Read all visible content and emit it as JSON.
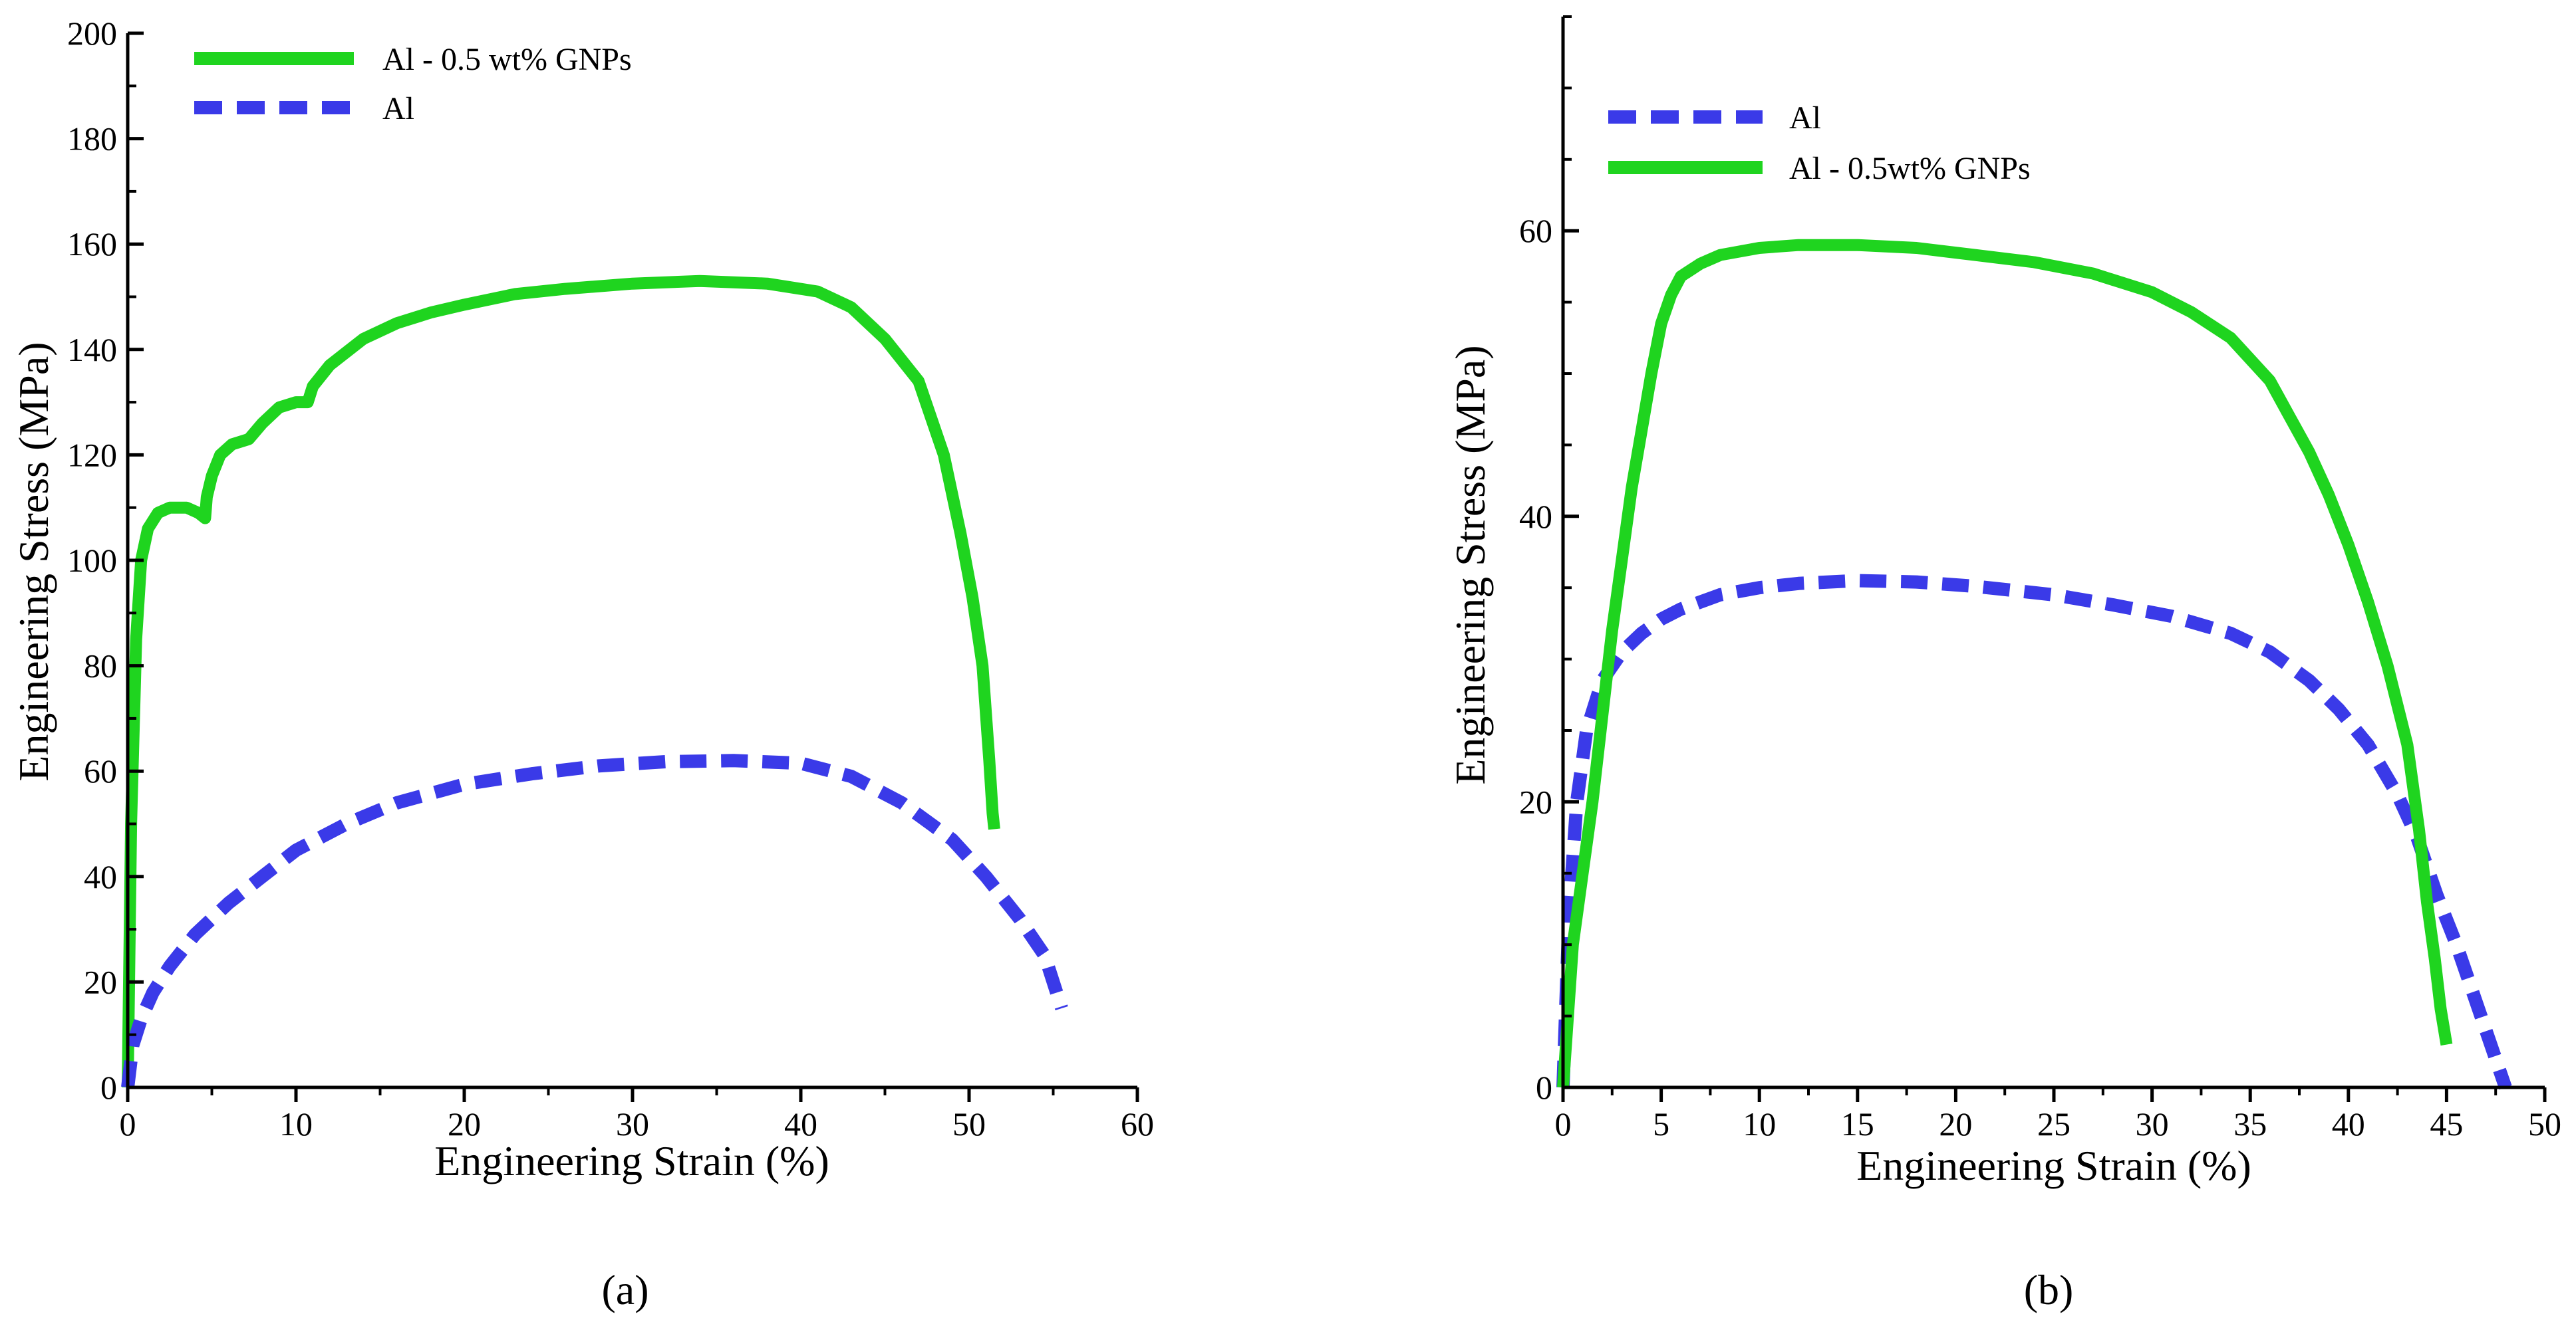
{
  "figure": {
    "panel_labels": [
      "(a)",
      "(b)"
    ]
  },
  "colors": {
    "gnp": "#1fd41f",
    "al": "#3a3ae8",
    "axis": "#000000",
    "background": "#ffffff"
  },
  "chart_data": [
    {
      "type": "line",
      "panel": "(a)",
      "title": "",
      "xlabel": "Engineering Strain (%)",
      "ylabel": "Engineering Stress (MPa)",
      "xlim": [
        0,
        60
      ],
      "ylim": [
        0,
        200
      ],
      "xticks": [
        0,
        10,
        20,
        30,
        40,
        50,
        60
      ],
      "yticks": [
        0,
        20,
        40,
        60,
        80,
        100,
        120,
        140,
        160,
        180,
        200
      ],
      "grid": false,
      "legend_position": "top-left",
      "series": [
        {
          "name": "Al - 0.5 wt% GNPs",
          "style": "solid",
          "color": "#1fd41f",
          "x": [
            0,
            0.2,
            0.5,
            0.8,
            1.2,
            1.8,
            2.5,
            3.5,
            4.2,
            4.6,
            4.7,
            5.0,
            5.5,
            6.2,
            7.2,
            8.0,
            9.0,
            10.0,
            10.7,
            11.0,
            12.0,
            14.0,
            16.0,
            18.0,
            20.0,
            23.0,
            26.0,
            30.0,
            34.0,
            38.0,
            41.0,
            43.0,
            45.0,
            47.0,
            48.5,
            49.5,
            50.2,
            50.8,
            51.2,
            51.4,
            51.5
          ],
          "y": [
            0,
            50,
            85,
            100,
            106,
            109,
            110,
            110,
            109,
            108,
            112,
            116,
            120,
            122,
            123,
            126,
            129,
            130,
            130,
            133,
            137,
            142,
            145,
            147,
            148.5,
            150.5,
            151.5,
            152.5,
            153,
            152.5,
            151,
            148,
            142,
            134,
            120,
            105,
            93,
            80,
            62,
            52,
            49
          ]
        },
        {
          "name": "Al",
          "style": "dashed",
          "color": "#3a3ae8",
          "x": [
            0,
            0.3,
            0.8,
            1.5,
            2.5,
            4,
            6,
            8,
            10,
            13,
            16,
            20,
            24,
            28,
            32,
            36,
            40,
            43,
            46,
            49,
            51,
            53,
            54.5,
            55.5
          ],
          "y": [
            0,
            8,
            13,
            18,
            23,
            29,
            35,
            40,
            45,
            50,
            54,
            57.5,
            59.5,
            61,
            61.8,
            62,
            61.5,
            59,
            54,
            47,
            40,
            32,
            25,
            15
          ]
        }
      ]
    },
    {
      "type": "line",
      "panel": "(b)",
      "title": "",
      "xlabel": "Engineering Strain (%)",
      "ylabel": "Engineering Stress (MPa)",
      "xlim": [
        0,
        50
      ],
      "ylim": [
        0,
        75
      ],
      "xticks": [
        0,
        5,
        10,
        15,
        20,
        25,
        30,
        35,
        40,
        45,
        50
      ],
      "yticks": [
        0,
        20,
        40,
        60
      ],
      "grid": false,
      "legend_position": "top-left",
      "series": [
        {
          "name": "Al",
          "style": "dashed",
          "color": "#3a3ae8",
          "x": [
            0,
            0.3,
            0.7,
            1.2,
            2,
            3,
            4,
            5,
            6,
            8,
            10,
            12,
            15,
            18,
            21,
            25,
            28,
            31,
            34,
            36,
            38,
            39.5,
            41,
            42.5,
            43.5,
            44.5,
            45.5,
            46.5,
            47.5,
            48
          ],
          "y": [
            0,
            12,
            20,
            25,
            28.5,
            30.5,
            31.8,
            32.8,
            33.5,
            34.5,
            35,
            35.3,
            35.5,
            35.4,
            35.1,
            34.5,
            33.8,
            33,
            31.8,
            30.5,
            28.5,
            26.5,
            24,
            20.5,
            17.5,
            13.5,
            10,
            6,
            2,
            0
          ]
        },
        {
          "name": "Al - 0.5wt% GNPs",
          "style": "solid",
          "color": "#1fd41f",
          "x": [
            0,
            0.5,
            1.0,
            1.5,
            2,
            2.5,
            3,
            3.5,
            4,
            4.5,
            5,
            5.5,
            6,
            7,
            8,
            10,
            12,
            15,
            18,
            21,
            24,
            27,
            30,
            32,
            34,
            36,
            37,
            38,
            39,
            40,
            41,
            42,
            43,
            43.6,
            44.0,
            44.4,
            44.7,
            45.0
          ],
          "y": [
            0,
            10,
            15,
            20,
            26,
            32,
            37,
            42,
            46,
            50,
            53.5,
            55.5,
            56.8,
            57.7,
            58.3,
            58.8,
            59,
            59,
            58.8,
            58.3,
            57.8,
            57,
            55.7,
            54.3,
            52.5,
            49.5,
            47,
            44.5,
            41.5,
            38,
            34,
            29.5,
            24,
            18,
            13,
            9,
            5.5,
            3
          ]
        }
      ]
    }
  ]
}
